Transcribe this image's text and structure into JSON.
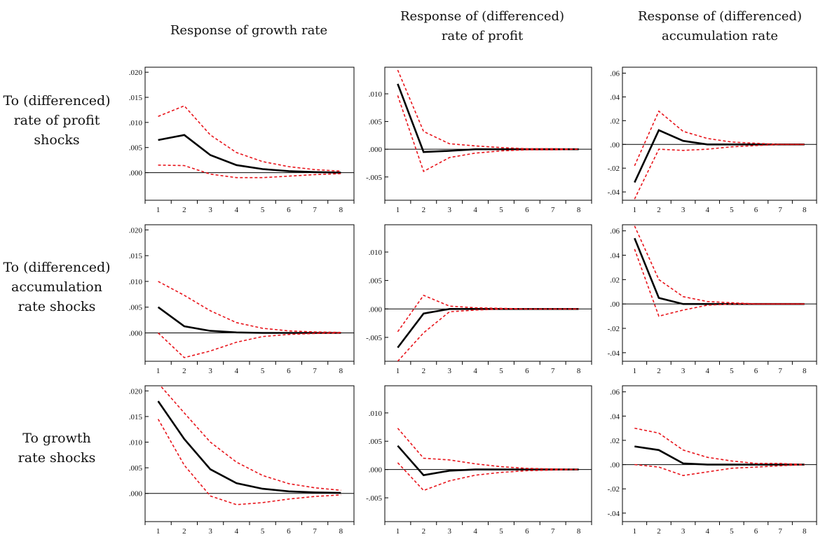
{
  "column_titles": [
    [
      "Response of growth rate"
    ],
    [
      "Response of (differenced)",
      "rate of profit"
    ],
    [
      "Response of (differenced)",
      "accumulation rate"
    ]
  ],
  "row_labels": [
    [
      "To (differenced)",
      "rate of profit",
      "shocks"
    ],
    [
      "To (differenced)",
      "accumulation",
      "rate shocks"
    ],
    [
      "To growth",
      "rate shocks"
    ]
  ],
  "colors": {
    "response": "#000000",
    "band": "#e8141b",
    "zero_line": "#000000"
  },
  "chart_data": [
    {
      "type": "line",
      "row": 0,
      "col": 0,
      "x": [
        1,
        2,
        3,
        4,
        5,
        6,
        7,
        8
      ],
      "ylim": [
        -0.0055,
        0.021
      ],
      "yticks": [
        ".020",
        ".015",
        ".010",
        ".005",
        ".000"
      ],
      "ytick_values": [
        0.02,
        0.015,
        0.01,
        0.005,
        0.0
      ],
      "series": [
        {
          "role": "response",
          "values": [
            0.0065,
            0.0075,
            0.0035,
            0.0015,
            0.0007,
            0.0003,
            0.0001,
            0.0
          ]
        },
        {
          "role": "upper",
          "values": [
            0.0112,
            0.0133,
            0.0075,
            0.004,
            0.0022,
            0.0012,
            0.0006,
            0.0003
          ]
        },
        {
          "role": "lower",
          "values": [
            0.0015,
            0.0014,
            -0.0003,
            -0.001,
            -0.001,
            -0.0007,
            -0.0004,
            -0.0002
          ]
        }
      ]
    },
    {
      "type": "line",
      "row": 0,
      "col": 1,
      "x": [
        1,
        2,
        3,
        4,
        5,
        6,
        7,
        8
      ],
      "ylim": [
        -0.0092,
        0.0148
      ],
      "yticks": [
        ".010",
        ".005",
        ".000",
        "-.005"
      ],
      "ytick_values": [
        0.01,
        0.005,
        0.0,
        -0.005
      ],
      "series": [
        {
          "role": "response",
          "values": [
            0.0118,
            -0.0005,
            -0.0003,
            0.0,
            0.0,
            0.0,
            0.0,
            0.0
          ]
        },
        {
          "role": "upper",
          "values": [
            0.0143,
            0.0032,
            0.001,
            0.0006,
            0.0003,
            0.0001,
            0.0001,
            0.0
          ]
        },
        {
          "role": "lower",
          "values": [
            0.0097,
            -0.004,
            -0.0015,
            -0.0007,
            -0.0003,
            -0.0001,
            -0.0001,
            0.0
          ]
        }
      ]
    },
    {
      "type": "line",
      "row": 0,
      "col": 2,
      "x": [
        1,
        2,
        3,
        4,
        5,
        6,
        7,
        8
      ],
      "ylim": [
        -0.047,
        0.065
      ],
      "yticks": [
        ".06",
        ".04",
        ".02",
        ".00",
        "-.02",
        "-.04"
      ],
      "ytick_values": [
        0.06,
        0.04,
        0.02,
        0.0,
        -0.02,
        -0.04
      ],
      "series": [
        {
          "role": "response",
          "values": [
            -0.032,
            0.012,
            0.003,
            0.0,
            0.0,
            0.0,
            0.0,
            0.0
          ]
        },
        {
          "role": "upper",
          "values": [
            -0.018,
            0.028,
            0.011,
            0.005,
            0.002,
            0.001,
            0.0,
            0.0
          ]
        },
        {
          "role": "lower",
          "values": [
            -0.046,
            -0.004,
            -0.005,
            -0.004,
            -0.002,
            -0.001,
            0.0,
            0.0
          ]
        }
      ]
    },
    {
      "type": "line",
      "row": 1,
      "col": 0,
      "x": [
        1,
        2,
        3,
        4,
        5,
        6,
        7,
        8
      ],
      "ylim": [
        -0.0055,
        0.021
      ],
      "yticks": [
        ".020",
        ".015",
        ".010",
        ".005",
        ".000"
      ],
      "ytick_values": [
        0.02,
        0.015,
        0.01,
        0.005,
        0.0
      ],
      "series": [
        {
          "role": "response",
          "values": [
            0.005,
            0.0013,
            0.0004,
            0.0001,
            0.0,
            0.0,
            0.0,
            0.0
          ]
        },
        {
          "role": "upper",
          "values": [
            0.01,
            0.0073,
            0.0043,
            0.002,
            0.0009,
            0.0004,
            0.0002,
            0.0001
          ]
        },
        {
          "role": "lower",
          "values": [
            0.0,
            -0.0048,
            -0.0035,
            -0.0018,
            -0.0007,
            -0.0003,
            -0.0001,
            0.0
          ]
        }
      ]
    },
    {
      "type": "line",
      "row": 1,
      "col": 1,
      "x": [
        1,
        2,
        3,
        4,
        5,
        6,
        7,
        8
      ],
      "ylim": [
        -0.0092,
        0.0148
      ],
      "yticks": [
        ".010",
        ".005",
        ".000",
        "-.005"
      ],
      "ytick_values": [
        0.01,
        0.005,
        0.0,
        -0.005
      ],
      "series": [
        {
          "role": "response",
          "values": [
            -0.0068,
            -0.0008,
            0.0,
            0.0,
            0.0,
            0.0,
            0.0,
            0.0
          ]
        },
        {
          "role": "upper",
          "values": [
            -0.004,
            0.0024,
            0.0005,
            0.0002,
            0.0001,
            0.0,
            0.0,
            0.0
          ]
        },
        {
          "role": "lower",
          "values": [
            -0.0092,
            -0.0042,
            -0.0005,
            -0.0002,
            0.0,
            0.0,
            0.0,
            0.0
          ]
        }
      ]
    },
    {
      "type": "line",
      "row": 1,
      "col": 2,
      "x": [
        1,
        2,
        3,
        4,
        5,
        6,
        7,
        8
      ],
      "ylim": [
        -0.047,
        0.065
      ],
      "yticks": [
        ".06",
        ".04",
        ".02",
        ".00",
        "-.02",
        "-.04"
      ],
      "ytick_values": [
        0.06,
        0.04,
        0.02,
        0.0,
        -0.02,
        -0.04
      ],
      "series": [
        {
          "role": "response",
          "values": [
            0.054,
            0.005,
            0.0,
            0.0,
            0.0,
            0.0,
            0.0,
            0.0
          ]
        },
        {
          "role": "upper",
          "values": [
            0.064,
            0.02,
            0.006,
            0.002,
            0.001,
            0.0,
            0.0,
            0.0
          ]
        },
        {
          "role": "lower",
          "values": [
            0.045,
            -0.01,
            -0.005,
            -0.001,
            0.0,
            0.0,
            0.0,
            0.0
          ]
        }
      ]
    },
    {
      "type": "line",
      "row": 2,
      "col": 0,
      "x": [
        1,
        2,
        3,
        4,
        5,
        6,
        7,
        8
      ],
      "ylim": [
        -0.0055,
        0.021
      ],
      "yticks": [
        ".020",
        ".015",
        ".010",
        ".005",
        ".000"
      ],
      "ytick_values": [
        0.02,
        0.015,
        0.01,
        0.005,
        0.0
      ],
      "series": [
        {
          "role": "response",
          "values": [
            0.018,
            0.0106,
            0.0047,
            0.002,
            0.0009,
            0.0004,
            0.0002,
            0.0001
          ]
        },
        {
          "role": "upper",
          "values": [
            0.0215,
            0.0157,
            0.01,
            0.0061,
            0.0035,
            0.0019,
            0.0011,
            0.0006
          ]
        },
        {
          "role": "lower",
          "values": [
            0.0145,
            0.0055,
            -0.0005,
            -0.0022,
            -0.0018,
            -0.0011,
            -0.0006,
            -0.0003
          ]
        }
      ]
    },
    {
      "type": "line",
      "row": 2,
      "col": 1,
      "x": [
        1,
        2,
        3,
        4,
        5,
        6,
        7,
        8
      ],
      "ylim": [
        -0.0092,
        0.0148
      ],
      "yticks": [
        ".010",
        ".005",
        ".000",
        "-.005"
      ],
      "ytick_values": [
        0.01,
        0.005,
        0.0,
        -0.005
      ],
      "series": [
        {
          "role": "response",
          "values": [
            0.0042,
            -0.001,
            -0.0002,
            0.0,
            0.0,
            0.0,
            0.0,
            0.0
          ]
        },
        {
          "role": "upper",
          "values": [
            0.0073,
            0.002,
            0.0017,
            0.001,
            0.0005,
            0.0002,
            0.0001,
            0.0
          ]
        },
        {
          "role": "lower",
          "values": [
            0.0012,
            -0.0037,
            -0.002,
            -0.001,
            -0.0005,
            -0.0002,
            -0.0001,
            0.0
          ]
        }
      ]
    },
    {
      "type": "line",
      "row": 2,
      "col": 2,
      "x": [
        1,
        2,
        3,
        4,
        5,
        6,
        7,
        8
      ],
      "ylim": [
        -0.047,
        0.065
      ],
      "yticks": [
        ".06",
        ".04",
        ".02",
        ".00",
        "-.02",
        "-.04"
      ],
      "ytick_values": [
        0.06,
        0.04,
        0.02,
        0.0,
        -0.02,
        -0.04
      ],
      "series": [
        {
          "role": "response",
          "values": [
            0.015,
            0.012,
            0.001,
            0.0,
            0.0,
            0.0,
            0.0,
            0.0
          ]
        },
        {
          "role": "upper",
          "values": [
            0.03,
            0.026,
            0.012,
            0.006,
            0.003,
            0.001,
            0.001,
            0.0
          ]
        },
        {
          "role": "lower",
          "values": [
            0.0,
            -0.002,
            -0.009,
            -0.006,
            -0.003,
            -0.002,
            -0.001,
            0.0
          ]
        }
      ]
    }
  ]
}
